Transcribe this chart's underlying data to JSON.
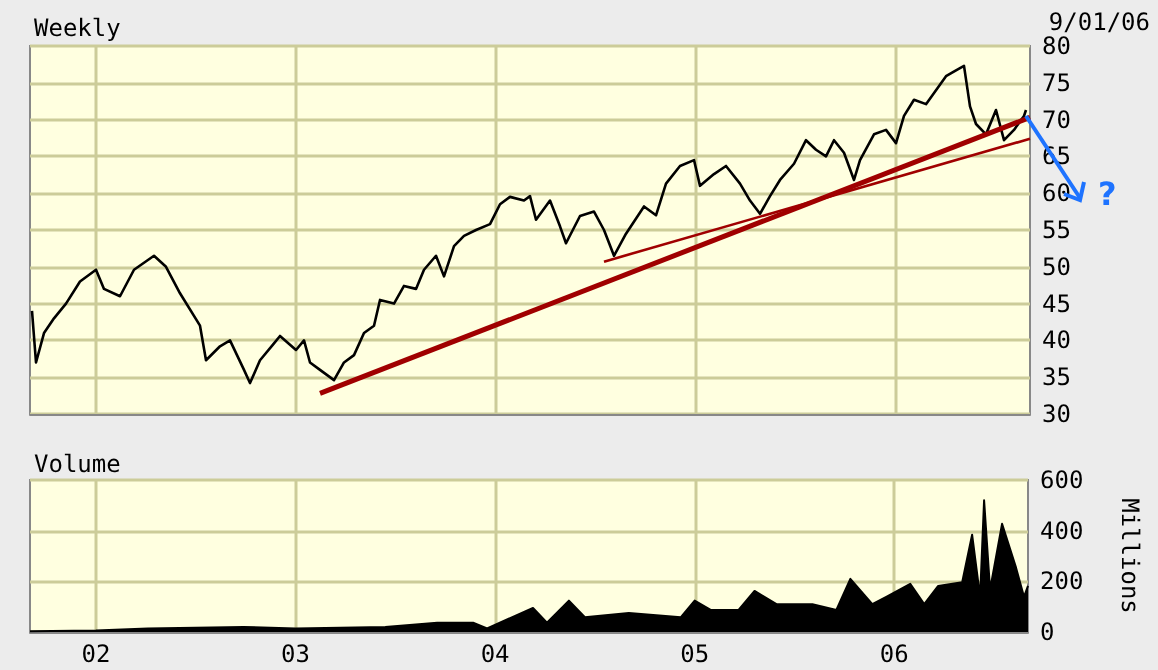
{
  "chart_data": [
    {
      "type": "line",
      "title": "Weekly",
      "annotations": [
        "9/01/06",
        "?"
      ],
      "xlim": [
        2001.67,
        2006.67
      ],
      "xticks": [
        {
          "value": 2002,
          "label": null
        },
        {
          "value": 2003,
          "label": null
        },
        {
          "value": 2004,
          "label": null
        },
        {
          "value": 2005,
          "label": null
        },
        {
          "value": 2006,
          "label": null
        }
      ],
      "ylim": [
        30,
        80
      ],
      "yticks": [
        30,
        35,
        40,
        45,
        50,
        55,
        60,
        65,
        70,
        75,
        80
      ],
      "grid": true,
      "marker": "none",
      "tick_labels": "y",
      "series": [
        {
          "color": "#000000",
          "x": [
            2001.68,
            2001.7,
            2001.74,
            2001.79,
            2001.85,
            2001.92,
            2002.0,
            2002.04,
            2002.12,
            2002.19,
            2002.29,
            2002.35,
            2002.42,
            2002.52,
            2002.55,
            2002.62,
            2002.67,
            2002.74,
            2002.77,
            2002.82,
            2002.89,
            2002.92,
            2003.0,
            2003.04,
            2003.07,
            2003.12,
            2003.19,
            2003.24,
            2003.29,
            2003.34,
            2003.39,
            2003.42,
            2003.49,
            2003.54,
            2003.6,
            2003.64,
            2003.7,
            2003.74,
            2003.79,
            2003.84,
            2003.9,
            2003.97,
            2004.02,
            2004.07,
            2004.14,
            2004.17,
            2004.2,
            2004.27,
            2004.32,
            2004.35,
            2004.42,
            2004.49,
            2004.54,
            2004.59,
            2004.65,
            2004.74,
            2004.8,
            2004.85,
            2004.92,
            2004.99,
            2005.02,
            2005.09,
            2005.15,
            2005.22,
            2005.27,
            2005.32,
            2005.37,
            2005.42,
            2005.49,
            2005.55,
            2005.6,
            2005.65,
            2005.69,
            2005.74,
            2005.79,
            2005.82,
            2005.89,
            2005.95,
            2006.0,
            2006.04,
            2006.09,
            2006.15,
            2006.2,
            2006.25,
            2006.3,
            2006.34,
            2006.37,
            2006.4,
            2006.45,
            2006.5,
            2006.54,
            2006.59,
            2006.64,
            2006.65
          ],
          "values": [
            44,
            37,
            41,
            43,
            45,
            48,
            49.6,
            47,
            46,
            49.6,
            51.5,
            50,
            46.4,
            42,
            37.3,
            39.2,
            40,
            36,
            34.2,
            37.3,
            39.6,
            40.6,
            38.7,
            40,
            37,
            36,
            34.6,
            37,
            38,
            41,
            42,
            45.5,
            45,
            47.4,
            47,
            49.6,
            51.5,
            48.7,
            52.8,
            54.2,
            55,
            55.8,
            58.5,
            59.5,
            59,
            59.6,
            56.4,
            59,
            55.5,
            53.2,
            56.9,
            57.5,
            55,
            51.5,
            54.5,
            58.2,
            57,
            61.3,
            63.7,
            64.5,
            61,
            62.6,
            63.7,
            61.3,
            59,
            57.2,
            59.6,
            61.8,
            64,
            67.2,
            65.9,
            65,
            67.2,
            65.5,
            61.8,
            64.5,
            68,
            68.6,
            66.8,
            70.5,
            72.7,
            72.1,
            74,
            75.9,
            76.7,
            77.3,
            71.8,
            69.4,
            68,
            71.3,
            67.2,
            68.6,
            70.5,
            71.3
          ]
        },
        {
          "color": "#a00000",
          "x": [
            2003.12,
            2006.67
          ],
          "values": [
            32.8,
            70.3
          ]
        },
        {
          "color": "#a00000",
          "x": [
            2004.54,
            2006.67
          ],
          "values": [
            50.7,
            67.4
          ]
        }
      ]
    },
    {
      "type": "area",
      "title": "Volume",
      "ylabel": "Millions",
      "xlim": [
        2001.67,
        2006.67
      ],
      "xticks": [
        {
          "value": 2002,
          "label": "02"
        },
        {
          "value": 2003,
          "label": "03"
        },
        {
          "value": 2004,
          "label": "04"
        },
        {
          "value": 2005,
          "label": "05"
        },
        {
          "value": 2006,
          "label": "06"
        }
      ],
      "ylim": [
        0,
        600
      ],
      "yticks": [
        0,
        200,
        400,
        600
      ],
      "grid": true,
      "marker": "none",
      "series": [
        {
          "color": "#000000",
          "x": [
            2001.67,
            2002.0,
            2002.26,
            2002.74,
            2003.0,
            2003.45,
            2003.71,
            2003.89,
            2003.96,
            2004.19,
            2004.26,
            2004.37,
            2004.45,
            2004.67,
            2004.93,
            2005.0,
            2005.08,
            2005.22,
            2005.3,
            2005.41,
            2005.59,
            2005.71,
            2005.78,
            2005.89,
            2005.96,
            2006.08,
            2006.15,
            2006.22,
            2006.34,
            2006.39,
            2006.43,
            2006.45,
            2006.48,
            2006.54,
            2006.61,
            2006.65,
            2006.67
          ],
          "values": [
            3,
            6,
            14,
            20,
            14,
            20,
            37,
            37,
            14,
            95,
            37,
            124,
            58,
            75,
            58,
            124,
            87,
            87,
            162,
            110,
            110,
            87,
            210,
            110,
            139,
            190,
            110,
            182,
            196,
            384,
            139,
            520,
            167,
            427,
            254,
            139,
            182
          ]
        }
      ]
    }
  ]
}
